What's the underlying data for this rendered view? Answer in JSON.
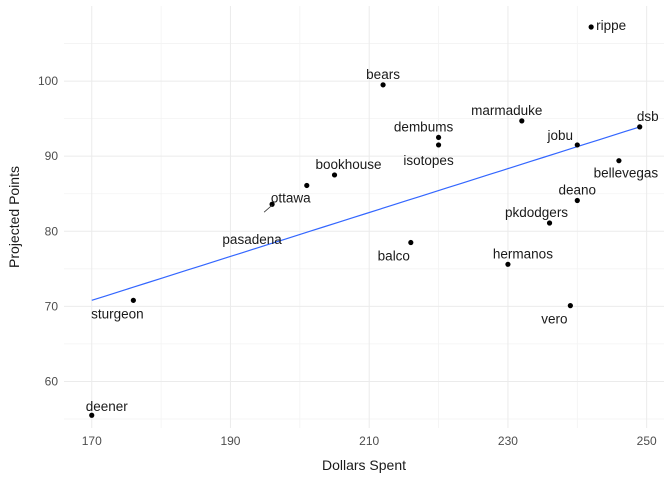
{
  "chart_data": {
    "type": "scatter",
    "title": "",
    "xlabel": "Dollars Spent",
    "ylabel": "Projected Points",
    "xlim": [
      166.0,
      252.5
    ],
    "ylim": [
      53.8,
      110.0
    ],
    "x_ticks": [
      170,
      190,
      210,
      230,
      250
    ],
    "y_ticks": [
      60,
      70,
      80,
      90,
      100
    ],
    "grid": true,
    "legend": "none",
    "trend_line": {
      "x": [
        170,
        249
      ],
      "y": [
        70.8,
        93.9
      ],
      "color": "#3366ff"
    },
    "points": [
      {
        "label": "rippe",
        "x": 242,
        "y": 107.2
      },
      {
        "label": "bears",
        "x": 212,
        "y": 99.5
      },
      {
        "label": "marmaduke",
        "x": 232,
        "y": 94.7
      },
      {
        "label": "dsb",
        "x": 249,
        "y": 93.9
      },
      {
        "label": "dembums",
        "x": 220,
        "y": 92.5
      },
      {
        "label": "isotopes",
        "x": 220,
        "y": 91.5
      },
      {
        "label": "jobu",
        "x": 240,
        "y": 91.5
      },
      {
        "label": "bellevegas",
        "x": 246,
        "y": 89.4
      },
      {
        "label": "bookhouse",
        "x": 205,
        "y": 87.5
      },
      {
        "label": "ottawa",
        "x": 201,
        "y": 86.1
      },
      {
        "label": "pasadena",
        "x": 196,
        "y": 83.6
      },
      {
        "label": "deano",
        "x": 240,
        "y": 84.1
      },
      {
        "label": "pkdodgers",
        "x": 236,
        "y": 81.1
      },
      {
        "label": "balco",
        "x": 216,
        "y": 78.5
      },
      {
        "label": "hermanos",
        "x": 230,
        "y": 75.6
      },
      {
        "label": "sturgeon",
        "x": 176,
        "y": 70.8
      },
      {
        "label": "vero",
        "x": 239,
        "y": 70.1
      },
      {
        "label": "deener",
        "x": 170,
        "y": 55.5
      }
    ]
  }
}
